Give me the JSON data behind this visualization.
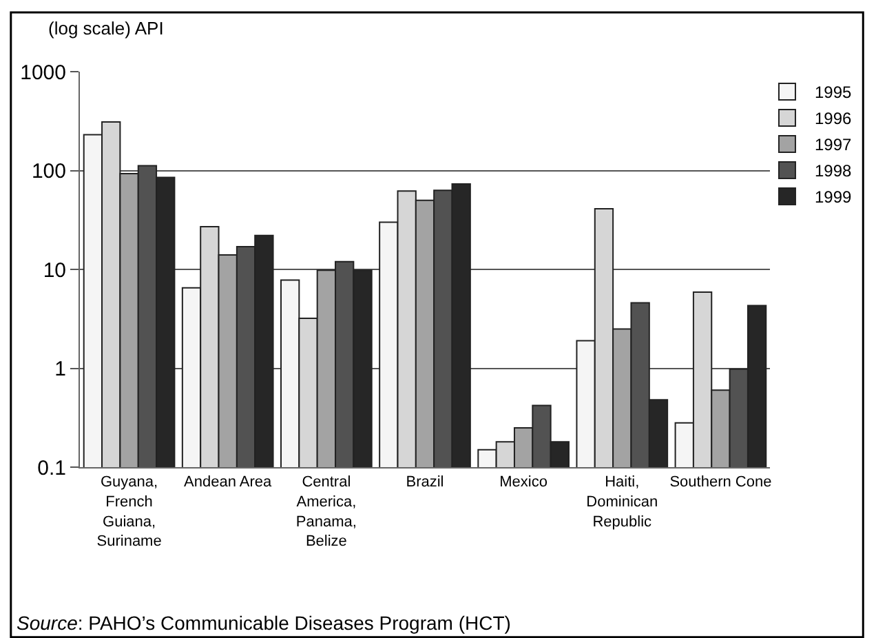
{
  "chart_data": {
    "type": "bar",
    "ylabel": "(log scale) API",
    "log": true,
    "categories": [
      "Guyana, French Guiana, Suriname",
      "Andean Area",
      "Central America, Panama, Belize",
      "Brazil",
      "Mexico",
      "Haiti, Dominican Republic",
      "Southern Cone"
    ],
    "series": [
      {
        "name": "1995",
        "color": "#f5f5f5",
        "values": [
          230,
          6.5,
          7.8,
          30,
          0.15,
          1.9,
          0.28
        ]
      },
      {
        "name": "1996",
        "color": "#d6d6d6",
        "values": [
          310,
          27,
          3.2,
          62,
          0.18,
          41,
          5.9
        ]
      },
      {
        "name": "1997",
        "color": "#a3a3a3",
        "values": [
          93,
          14,
          9.8,
          50,
          0.25,
          2.5,
          0.6
        ]
      },
      {
        "name": "1998",
        "color": "#525252",
        "values": [
          112,
          17,
          12,
          63,
          0.42,
          4.6,
          0.98
        ]
      },
      {
        "name": "1999",
        "color": "#262626",
        "values": [
          85,
          22,
          9.8,
          73,
          0.18,
          0.48,
          4.3
        ]
      }
    ],
    "ylim": [
      0.1,
      1000
    ],
    "yticks": [
      0.1,
      1,
      10,
      100,
      1000
    ],
    "grid": "y",
    "legend": "top right",
    "annotations": [
      "Source: PAHO’s Communicable Diseases Program (HCT)"
    ]
  }
}
